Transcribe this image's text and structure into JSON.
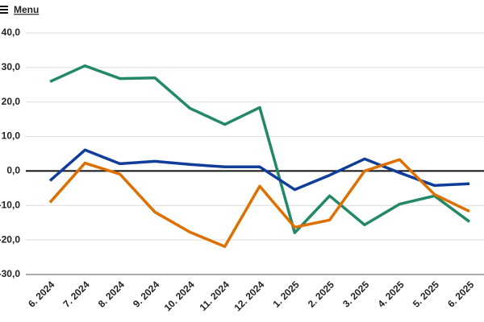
{
  "menu": "Menu",
  "chart_data": {
    "type": "line",
    "categories": [
      "6. 2024",
      "7. 2024",
      "8. 2024",
      "9. 2024",
      "10. 2024",
      "11. 2024",
      "12. 2024",
      "1. 2025",
      "2. 2025",
      "3. 2025",
      "4. 2025",
      "5. 2025",
      "6. 2025"
    ],
    "series": [
      {
        "color": "#228866",
        "values": [
          25.9,
          30.5,
          26.8,
          27.0,
          18.2,
          13.5,
          18.4,
          -17.9,
          -7.2,
          -15.6,
          -9.6,
          -7.2,
          -14.7
        ]
      },
      {
        "color": "#0f3d99",
        "values": [
          -2.8,
          6.1,
          2.1,
          2.8,
          1.9,
          1.2,
          1.2,
          -5.4,
          -1.2,
          3.5,
          -0.5,
          -4.2,
          -3.7
        ]
      },
      {
        "color": "#dd7000",
        "values": [
          -9.1,
          2.3,
          -0.9,
          -11.9,
          -17.7,
          -21.9,
          -4.4,
          -16.3,
          -14.2,
          0.0,
          3.3,
          -6.8,
          -11.7
        ]
      }
    ],
    "ylim": [
      -30,
      40
    ],
    "yticks": [
      {
        "value": 40,
        "label": "40,0"
      },
      {
        "value": 30,
        "label": "30,0"
      },
      {
        "value": 20,
        "label": "20,0"
      },
      {
        "value": 10,
        "label": "10,0"
      },
      {
        "value": 0,
        "label": "0,0"
      },
      {
        "value": -10,
        "label": "-10,0"
      },
      {
        "value": -20,
        "label": "-20,0"
      },
      {
        "value": -30,
        "label": "-30,0"
      }
    ],
    "grid": true
  }
}
